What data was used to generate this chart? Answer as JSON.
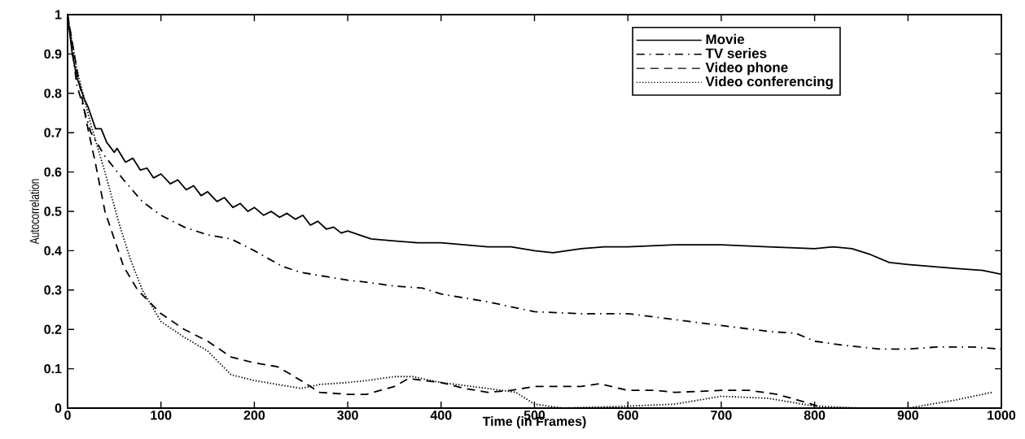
{
  "chart_data": {
    "type": "line",
    "xlabel": "Time (in Frames)",
    "ylabel": "Autocorrelation",
    "xlim": [
      0,
      1000
    ],
    "ylim": [
      0,
      1
    ],
    "xticks": [
      0,
      100,
      200,
      300,
      400,
      500,
      600,
      700,
      800,
      900,
      1000
    ],
    "yticks": [
      0,
      0.1,
      0.2,
      0.3,
      0.4,
      0.5,
      0.6,
      0.7,
      0.8,
      0.9,
      1
    ],
    "legend": "top right",
    "series": [
      {
        "name": "Movie",
        "color": "#000000",
        "line_style": "solid",
        "x": [
          0,
          5,
          10,
          18,
          22,
          30,
          36,
          42,
          50,
          53,
          62,
          70,
          78,
          85,
          92,
          100,
          110,
          118,
          127,
          135,
          143,
          150,
          160,
          168,
          177,
          185,
          193,
          200,
          210,
          218,
          227,
          235,
          244,
          252,
          260,
          268,
          277,
          285,
          293,
          300,
          325,
          350,
          375,
          400,
          425,
          450,
          475,
          500,
          520,
          550,
          575,
          600,
          650,
          700,
          750,
          800,
          820,
          840,
          860,
          880,
          900,
          950,
          980,
          1000
        ],
        "values": [
          1,
          0.9,
          0.84,
          0.785,
          0.765,
          0.71,
          0.71,
          0.675,
          0.65,
          0.66,
          0.625,
          0.635,
          0.605,
          0.61,
          0.585,
          0.595,
          0.57,
          0.58,
          0.555,
          0.565,
          0.54,
          0.55,
          0.525,
          0.535,
          0.51,
          0.52,
          0.5,
          0.51,
          0.49,
          0.5,
          0.485,
          0.495,
          0.48,
          0.49,
          0.465,
          0.475,
          0.455,
          0.46,
          0.445,
          0.45,
          0.43,
          0.425,
          0.42,
          0.42,
          0.415,
          0.41,
          0.41,
          0.4,
          0.395,
          0.405,
          0.41,
          0.41,
          0.415,
          0.415,
          0.41,
          0.405,
          0.41,
          0.405,
          0.39,
          0.37,
          0.365,
          0.355,
          0.35,
          0.34
        ]
      },
      {
        "name": "TV series",
        "color": "#000000",
        "line_style": "dashdot",
        "x": [
          0,
          10,
          25,
          40,
          60,
          80,
          100,
          125,
          150,
          175,
          200,
          230,
          250,
          300,
          320,
          350,
          380,
          400,
          450,
          500,
          550,
          600,
          650,
          700,
          750,
          780,
          800,
          830,
          870,
          900,
          930,
          970,
          1000
        ],
        "values": [
          1,
          0.82,
          0.7,
          0.64,
          0.58,
          0.525,
          0.49,
          0.46,
          0.44,
          0.43,
          0.4,
          0.36,
          0.345,
          0.325,
          0.32,
          0.31,
          0.305,
          0.29,
          0.27,
          0.245,
          0.24,
          0.24,
          0.225,
          0.21,
          0.195,
          0.19,
          0.17,
          0.16,
          0.15,
          0.15,
          0.155,
          0.155,
          0.15
        ]
      },
      {
        "name": "Video phone",
        "color": "#000000",
        "line_style": "dashed",
        "x": [
          0,
          10,
          20,
          30,
          40,
          50,
          60,
          75,
          100,
          125,
          150,
          175,
          200,
          225,
          250,
          270,
          300,
          320,
          350,
          365,
          400,
          425,
          450,
          475,
          500,
          550,
          570,
          600,
          630,
          650,
          700,
          730,
          760,
          790,
          810,
          850,
          900,
          950,
          1000
        ],
        "values": [
          1,
          0.86,
          0.73,
          0.62,
          0.5,
          0.43,
          0.36,
          0.3,
          0.24,
          0.2,
          0.17,
          0.13,
          0.115,
          0.105,
          0.07,
          0.04,
          0.035,
          0.035,
          0.055,
          0.075,
          0.065,
          0.05,
          0.04,
          0.045,
          0.055,
          0.055,
          0.062,
          0.045,
          0.045,
          0.04,
          0.045,
          0.045,
          0.035,
          0.015,
          0,
          0,
          0,
          0,
          0
        ]
      },
      {
        "name": "Video conferencing",
        "color": "#000000",
        "line_style": "dotted",
        "x": [
          0,
          10,
          25,
          40,
          55,
          67,
          80,
          100,
          125,
          150,
          175,
          200,
          225,
          250,
          270,
          300,
          320,
          350,
          370,
          400,
          450,
          480,
          500,
          530,
          600,
          650,
          700,
          750,
          800,
          850,
          900,
          950,
          990
        ],
        "values": [
          1,
          0.86,
          0.72,
          0.6,
          0.47,
          0.38,
          0.3,
          0.22,
          0.18,
          0.145,
          0.085,
          0.07,
          0.06,
          0.05,
          0.06,
          0.065,
          0.07,
          0.08,
          0.08,
          0.065,
          0.05,
          0.04,
          0.01,
          0,
          0.005,
          0.01,
          0.03,
          0.025,
          0.005,
          0,
          0,
          0.02,
          0.04
        ]
      }
    ]
  }
}
